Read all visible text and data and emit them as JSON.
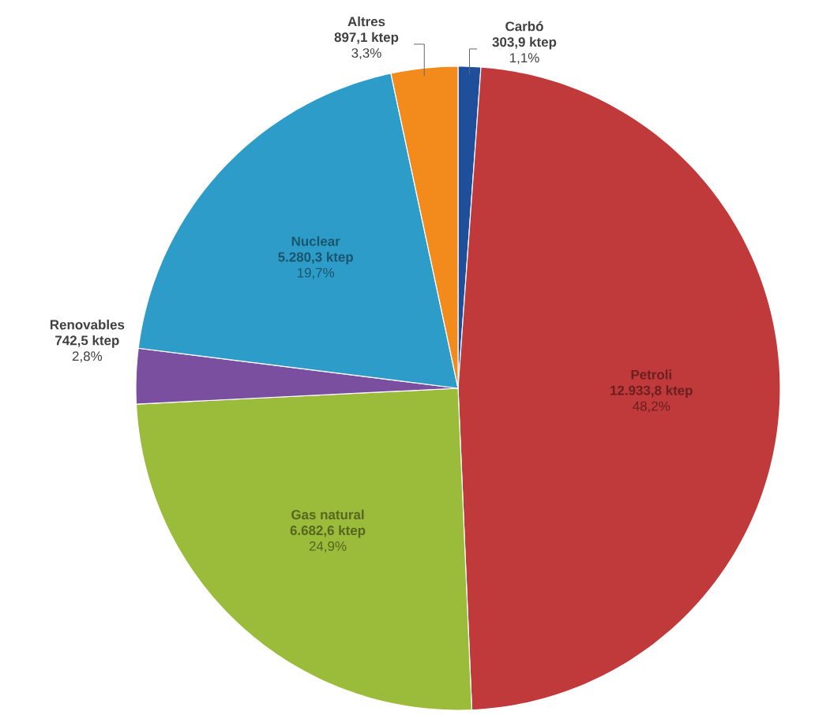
{
  "chart_data": {
    "type": "pie",
    "categories": [
      "Carbó",
      "Petroli",
      "Gas natural",
      "Renovables",
      "Nuclear",
      "Altres"
    ],
    "values": [
      303.9,
      12933.8,
      6682.6,
      742.5,
      5280.3,
      897.1
    ],
    "colors": [
      "#1f4e9a",
      "#c0393b",
      "#9bbb3b",
      "#7a4fa0",
      "#2e9cc8",
      "#f28a1c"
    ],
    "value_labels": [
      "303,9 ktep",
      "12.933,8 ktep",
      "6.682,6 ktep",
      "742,5 ktep",
      "5.280,3 ktep",
      "897,1 ktep"
    ],
    "annotations": [
      "1,1%",
      "48,2%",
      "24,9%",
      "2,8%",
      "19,7%",
      "3,3%"
    ]
  }
}
